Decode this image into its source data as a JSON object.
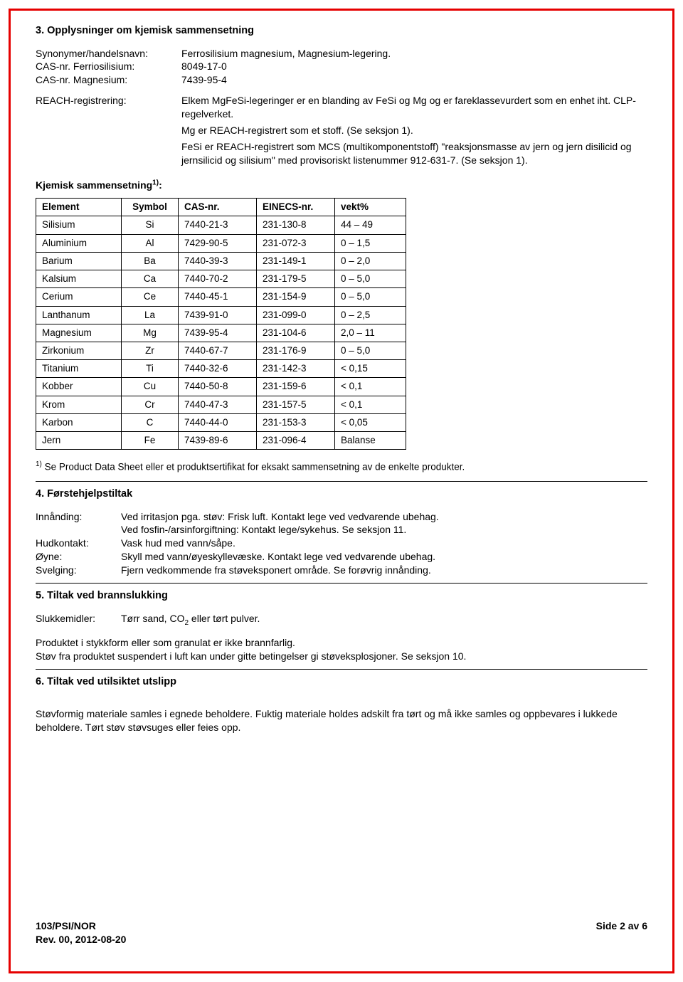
{
  "section3": {
    "title": "3. Opplysninger om kjemisk sammensetning",
    "synonym_label": "Synonymer/handelsnavn:",
    "synonym_value": "Ferrosilisium magnesium, Magnesium-legering.",
    "cas_ferro_label": "CAS-nr. Ferriosilisium:",
    "cas_ferro_value": "8049-17-0",
    "cas_mg_label": "CAS-nr. Magnesium:",
    "cas_mg_value": "7439-95-4",
    "reach_label": "REACH-registrering:",
    "reach_p1": "Elkem MgFeSi-legeringer er en blanding av FeSi og Mg og er fareklassevurdert som en enhet iht. CLP-regelverket.",
    "reach_p2": "Mg er REACH-registrert som et stoff. (Se seksjon 1).",
    "reach_p3": "FeSi er REACH-registrert som MCS (multikomponentstoff) \"reaksjonsmasse av jern og jern disilicid og jernsilicid og silisium\" med provisoriskt listenummer 912-631-7. (Se seksjon 1).",
    "subheading_prefix": "Kjemisk sammensetning",
    "subheading_sup": "1)",
    "subheading_suffix": ":",
    "table": {
      "headers": {
        "element": "Element",
        "symbol": "Symbol",
        "cas": "CAS-nr.",
        "einecs": "EINECS-nr.",
        "vekt": "vekt%"
      },
      "rows": [
        {
          "element": "Silisium",
          "symbol": "Si",
          "cas": "7440-21-3",
          "einecs": "231-130-8",
          "vekt": "44 – 49"
        },
        {
          "element": "Aluminium",
          "symbol": "Al",
          "cas": "7429-90-5",
          "einecs": "231-072-3",
          "vekt": "0 – 1,5"
        },
        {
          "element": "Barium",
          "symbol": "Ba",
          "cas": "7440-39-3",
          "einecs": "231-149-1",
          "vekt": "0 – 2,0"
        },
        {
          "element": "Kalsium",
          "symbol": "Ca",
          "cas": "7440-70-2",
          "einecs": "231-179-5",
          "vekt": "0 – 5,0"
        },
        {
          "element": "Cerium",
          "symbol": "Ce",
          "cas": "7440-45-1",
          "einecs": "231-154-9",
          "vekt": "0 – 5,0"
        },
        {
          "element": "Lanthanum",
          "symbol": "La",
          "cas": "7439-91-0",
          "einecs": "231-099-0",
          "vekt": "0 – 2,5"
        },
        {
          "element": "Magnesium",
          "symbol": "Mg",
          "cas": "7439-95-4",
          "einecs": "231-104-6",
          "vekt": "2,0 – 11"
        },
        {
          "element": "Zirkonium",
          "symbol": "Zr",
          "cas": "7440-67-7",
          "einecs": "231-176-9",
          "vekt": "0 – 5,0"
        },
        {
          "element": "Titanium",
          "symbol": "Ti",
          "cas": "7440-32-6",
          "einecs": "231-142-3",
          "vekt": "< 0,15"
        },
        {
          "element": "Kobber",
          "symbol": "Cu",
          "cas": "7440-50-8",
          "einecs": "231-159-6",
          "vekt": "< 0,1"
        },
        {
          "element": "Krom",
          "symbol": "Cr",
          "cas": "7440-47-3",
          "einecs": "231-157-5",
          "vekt": "< 0,1"
        },
        {
          "element": "Karbon",
          "symbol": "C",
          "cas": "7440-44-0",
          "einecs": "231-153-3",
          "vekt": "< 0,05"
        },
        {
          "element": "Jern",
          "symbol": "Fe",
          "cas": "7439-89-6",
          "einecs": "231-096-4",
          "vekt": "Balanse"
        }
      ]
    },
    "footnote_sup": "1)",
    "footnote_text": " Se Product Data Sheet eller et produktsertifikat for eksakt sammensetning av de enkelte produkter."
  },
  "section4": {
    "title": "4. Førstehjelpstiltak",
    "innanding_label": "Innånding:",
    "innanding_l1": "Ved irritasjon pga. støv: Frisk luft. Kontakt lege ved vedvarende ubehag.",
    "innanding_l2": "Ved fosfin-/arsinforgiftning: Kontakt lege/sykehus. Se seksjon 11.",
    "hud_label": "Hudkontakt:",
    "hud_value": "Vask hud med vann/såpe.",
    "oyne_label": "Øyne:",
    "oyne_value": "Skyll med vann/øyeskyllevæske. Kontakt lege ved vedvarende ubehag.",
    "svelg_label": "Svelging:",
    "svelg_value": "Fjern vedkommende fra støveksponert område. Se forøvrig innånding."
  },
  "section5": {
    "title": "5. Tiltak ved brannslukking",
    "slukk_label": "Slukkemidler:",
    "slukk_prefix": "Tørr sand, CO",
    "slukk_sub": "2",
    "slukk_suffix": " eller tørt pulver.",
    "p1": "Produktet i stykkform eller som granulat er ikke brannfarlig.",
    "p2": "Støv fra produktet suspendert i luft kan under gitte betingelser gi støveksplosjoner. Se seksjon 10."
  },
  "section6": {
    "title": "6. Tiltak ved utilsiktet utslipp",
    "p1": "Støvformig materiale samles i egnede beholdere. Fuktig materiale holdes adskilt fra tørt og må ikke samles og oppbevares i lukkede beholdere. Tørt støv støvsuges eller feies opp."
  },
  "footer": {
    "left_l1": "103/PSI/NOR",
    "left_l2": "Rev. 00, 2012-08-20",
    "right": "Side 2 av 6"
  }
}
